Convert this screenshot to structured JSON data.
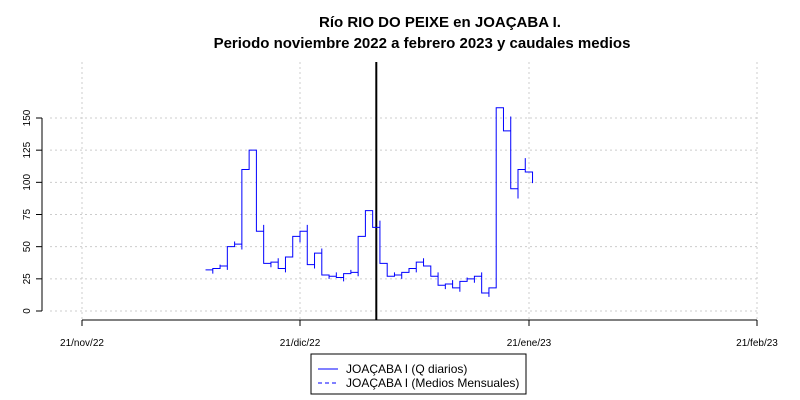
{
  "chart_data": {
    "type": "line",
    "title": "Río RIO DO PEIXE en JOAÇABA I.",
    "subtitle": "Periodo noviembre 2022 a febrero 2023 y caudales medios",
    "xlabel": "",
    "ylabel": "",
    "x_ticks": [
      "21/nov/22",
      "21/dic/22",
      "21/ene/23",
      "21/feb/23"
    ],
    "y_ticks": [
      0,
      25,
      50,
      75,
      100,
      125,
      150
    ],
    "ylim": [
      -5,
      190
    ],
    "grid": true,
    "legend_position": "bottom",
    "vertical_marker_day": 40.5,
    "series": [
      {
        "name": "JOAÇABA I (Q diarios)",
        "color": "#0000ff",
        "style": "solid",
        "day_offsets": [
          17,
          18,
          19,
          20,
          21,
          22,
          23,
          24,
          25,
          26,
          27,
          28,
          29,
          30,
          31,
          32,
          33,
          34,
          35,
          36,
          37,
          38,
          39,
          40,
          41,
          42,
          43,
          44,
          45,
          46,
          47,
          48,
          49,
          50,
          51,
          52,
          53,
          54,
          55,
          56,
          57,
          58,
          59,
          60,
          61,
          62,
          63,
          64,
          65,
          66,
          67,
          68,
          69,
          70,
          71,
          72,
          73,
          74,
          75
        ],
        "values": [
          32,
          33,
          35,
          50,
          52,
          110,
          125,
          62,
          37,
          38,
          33,
          42,
          58,
          62,
          36,
          45,
          28,
          27,
          26,
          29,
          30,
          58,
          78,
          65,
          37,
          27,
          28,
          30,
          33,
          38,
          35,
          27,
          20,
          21,
          18,
          23,
          25,
          27,
          14,
          18,
          158,
          140,
          95,
          110,
          108,
          null,
          null,
          null,
          null,
          null,
          null,
          null,
          null,
          null,
          null,
          null,
          null,
          null,
          null
        ]
      },
      {
        "name": "JOAÇABA I (Medios Mensuales)",
        "color": "#0000ff",
        "style": "dashed",
        "values": []
      }
    ]
  }
}
